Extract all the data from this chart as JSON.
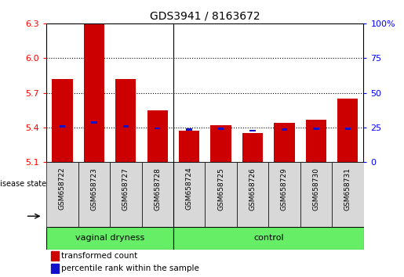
{
  "title": "GDS3941 / 8163672",
  "samples": [
    "GSM658722",
    "GSM658723",
    "GSM658727",
    "GSM658728",
    "GSM658724",
    "GSM658725",
    "GSM658726",
    "GSM658729",
    "GSM658730",
    "GSM658731"
  ],
  "red_values": [
    5.82,
    6.3,
    5.82,
    5.55,
    5.37,
    5.42,
    5.35,
    5.44,
    5.47,
    5.65
  ],
  "blue_values": [
    5.4,
    5.435,
    5.4,
    5.382,
    5.372,
    5.378,
    5.362,
    5.372,
    5.378,
    5.378
  ],
  "y_min": 5.1,
  "y_max": 6.3,
  "y_ticks_left": [
    5.1,
    5.4,
    5.7,
    6.0,
    6.3
  ],
  "y_ticks_right": [
    0,
    25,
    50,
    75,
    100
  ],
  "bar_width": 0.65,
  "bar_color": "#cc0000",
  "blue_color": "#1111cc",
  "n_vaginal": 4,
  "n_control": 6,
  "group_color": "#66ee66",
  "group_label_vaginal": "vaginal dryness",
  "group_label_control": "control",
  "label_transformed": "transformed count",
  "label_percentile": "percentile rank within the sample",
  "xlabel_disease": "disease state",
  "grid_lines": [
    5.4,
    5.7,
    6.0
  ]
}
